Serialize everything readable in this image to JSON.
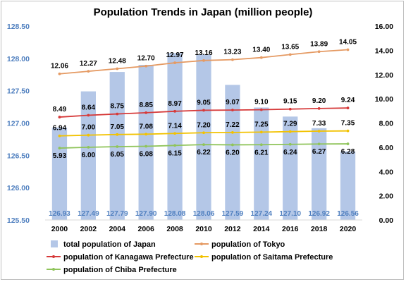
{
  "chart_data": {
    "type": "bar",
    "title": "Population Trends in Japan (million people)",
    "categories": [
      "2000",
      "2002",
      "2004",
      "2006",
      "2008",
      "2010",
      "2012",
      "2014",
      "2016",
      "2018",
      "2020"
    ],
    "y_left": {
      "min": 125.5,
      "max": 128.5,
      "ticks": [
        "125.50",
        "126.00",
        "126.50",
        "127.00",
        "127.50",
        "128.00",
        "128.50"
      ]
    },
    "y_right": {
      "min": 0,
      "max": 16,
      "ticks": [
        "0.00",
        "2.00",
        "4.00",
        "6.00",
        "8.00",
        "10.00",
        "12.00",
        "14.00",
        "16.00"
      ]
    },
    "legend_position": "bottom",
    "series": [
      {
        "name": "total population of Japan",
        "kind": "bar",
        "axis": "left",
        "color": "#b4c7e7",
        "label_color": "#4f7fbf",
        "values": [
          126.93,
          127.49,
          127.79,
          127.9,
          128.08,
          128.06,
          127.59,
          127.24,
          127.1,
          126.92,
          126.56
        ],
        "labels": [
          "126.93",
          "127.49",
          "127.79",
          "127.90",
          "128.08",
          "128.06",
          "127.59",
          "127.24",
          "127.10",
          "126.92",
          "126.56"
        ]
      },
      {
        "name": "population of Tokyo",
        "kind": "line",
        "axis": "right",
        "color": "#e59a63",
        "values": [
          12.06,
          12.27,
          12.48,
          12.7,
          12.97,
          13.16,
          13.23,
          13.4,
          13.65,
          13.89,
          14.05
        ],
        "labels": [
          "12.06",
          "12.27",
          "12.48",
          "12.70",
          "12.97",
          "13.16",
          "13.23",
          "13.40",
          "13.65",
          "13.89",
          "14.05"
        ]
      },
      {
        "name": "population of Kanagawa Prefecture",
        "kind": "line",
        "axis": "right",
        "color": "#d63a3a",
        "values": [
          8.49,
          8.64,
          8.75,
          8.85,
          8.97,
          9.05,
          9.07,
          9.1,
          9.15,
          9.2,
          9.24
        ],
        "labels": [
          "8.49",
          "8.64",
          "8.75",
          "8.85",
          "8.97",
          "9.05",
          "9.07",
          "9.10",
          "9.15",
          "9.20",
          "9.24"
        ]
      },
      {
        "name": "population of Saitama Prefecture",
        "kind": "line",
        "axis": "right",
        "color": "#f2c200",
        "values": [
          6.94,
          7.0,
          7.05,
          7.08,
          7.14,
          7.2,
          7.22,
          7.25,
          7.29,
          7.33,
          7.35
        ],
        "labels": [
          "6.94",
          "7.00",
          "7.05",
          "7.08",
          "7.14",
          "7.20",
          "7.22",
          "7.25",
          "7.29",
          "7.33",
          "7.35"
        ]
      },
      {
        "name": "population of Chiba Prefecture",
        "kind": "line",
        "axis": "right",
        "color": "#8fc45a",
        "values": [
          5.93,
          6.0,
          6.05,
          6.08,
          6.15,
          6.22,
          6.2,
          6.21,
          6.24,
          6.27,
          6.28
        ],
        "labels": [
          "5.93",
          "6.00",
          "6.05",
          "6.08",
          "6.15",
          "6.22",
          "6.20",
          "6.21",
          "6.24",
          "6.27",
          "6.28"
        ]
      }
    ]
  }
}
